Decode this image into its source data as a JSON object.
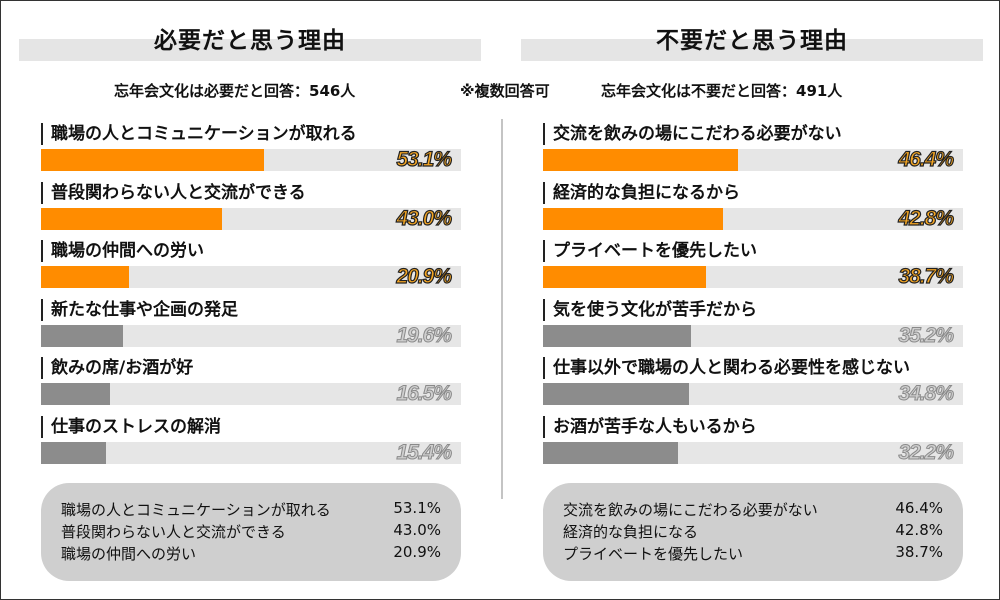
{
  "left_panel": {
    "title": "必要だと思う理由",
    "summary": "忘年会文化は必要だと回答：546人"
  },
  "note": "※複数回答可",
  "right_panel": {
    "title": "不要だと思う理由",
    "summary": "忘年会文化は不要だと回答：491人"
  },
  "colors": {
    "highlight": "#ff8c00",
    "muted": "#8c8c8c",
    "track": "#e6e6e6"
  },
  "chart_data": [
    {
      "type": "bar",
      "title": "必要だと思う理由",
      "xlim": [
        0,
        100
      ],
      "categories": [
        "職場の人とコミュニケーションが取れる",
        "普段関わらない人と交流ができる",
        "職場の仲間への労い",
        "新たな仕事や企画の発足",
        "飲みの席/お酒が好",
        "仕事のストレスの解消"
      ],
      "values": [
        53.1,
        43.0,
        20.9,
        19.6,
        16.5,
        15.4
      ],
      "labels": [
        "53.1%",
        "43.0%",
        "20.9%",
        "19.6%",
        "16.5%",
        "15.4%"
      ],
      "highlighted_top": 3
    },
    {
      "type": "bar",
      "title": "不要だと思う理由",
      "xlim": [
        0,
        100
      ],
      "categories": [
        "交流を飲みの場にこだわる必要がない",
        "経済的な負担になるから",
        "プライベートを優先したい",
        "気を使う文化が苦手だから",
        "仕事以外で職場の人と関わる必要性を感じない",
        "お酒が苦手な人もいるから"
      ],
      "values": [
        46.4,
        42.8,
        38.7,
        35.2,
        34.8,
        32.2
      ],
      "labels": [
        "46.4%",
        "42.8%",
        "38.7%",
        "35.2%",
        "34.8%",
        "32.2%"
      ],
      "highlighted_top": 3
    }
  ],
  "summary_boxes": [
    {
      "rows": [
        {
          "text": "職場の人とコミュニケーションが取れる",
          "value": "53.1%"
        },
        {
          "text": "普段関わらない人と交流ができる",
          "value": "43.0%"
        },
        {
          "text": "職場の仲間への労い",
          "value": "20.9%"
        }
      ]
    },
    {
      "rows": [
        {
          "text": "交流を飲みの場にこだわる必要がない",
          "value": "46.4%"
        },
        {
          "text": "経済的な負担になる",
          "value": "42.8%"
        },
        {
          "text": "プライベートを優先したい",
          "value": "38.7%"
        }
      ]
    }
  ]
}
